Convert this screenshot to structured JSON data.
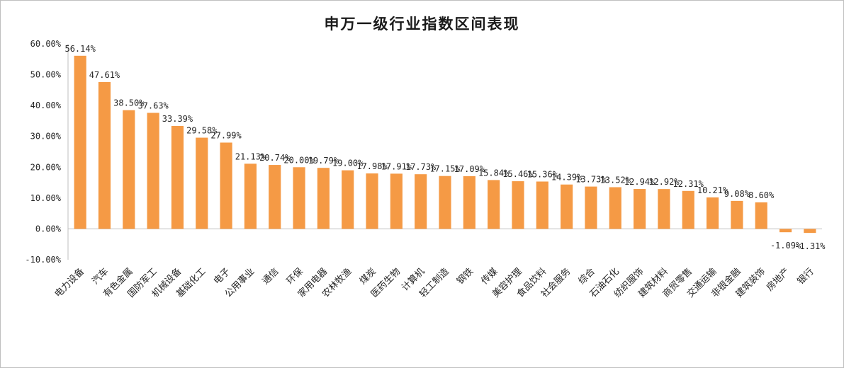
{
  "chart_data": {
    "type": "bar",
    "title": "申万一级行业指数区间表现",
    "xlabel": "",
    "ylabel": "",
    "ylim": [
      -0.1,
      0.6
    ],
    "y_tick_labels": [
      "60.00%",
      "50.00%",
      "40.00%",
      "30.00%",
      "20.00%",
      "10.00%",
      "0.00%",
      "-10.00%"
    ],
    "grid": false,
    "legend": "none",
    "bar_color": "#F59A45",
    "categories": [
      "电力设备",
      "汽车",
      "有色金属",
      "国防军工",
      "机械设备",
      "基础化工",
      "电子",
      "公用事业",
      "通信",
      "环保",
      "家用电器",
      "农林牧渔",
      "煤炭",
      "医药生物",
      "计算机",
      "轻工制造",
      "钢铁",
      "传媒",
      "美容护理",
      "食品饮料",
      "社会服务",
      "综合",
      "石油石化",
      "纺织服饰",
      "建筑材料",
      "商贸零售",
      "交通运输",
      "非银金融",
      "建筑装饰",
      "房地产",
      "银行"
    ],
    "values": [
      0.5614,
      0.4761,
      0.385,
      0.3763,
      0.3339,
      0.2958,
      0.2799,
      0.2113,
      0.2074,
      0.2,
      0.1979,
      0.19,
      0.1798,
      0.1791,
      0.1773,
      0.1715,
      0.1709,
      0.1584,
      0.1546,
      0.1536,
      0.1439,
      0.1373,
      0.1352,
      0.1294,
      0.1292,
      0.1231,
      0.1021,
      0.0908,
      0.086,
      -0.0109,
      -0.0131
    ],
    "data_labels": [
      "56.14%",
      "47.61%",
      "38.50%",
      "37.63%",
      "33.39%",
      "29.58%",
      "27.99%",
      "21.13%",
      "20.74%",
      "20.00%",
      "19.79%",
      "19.00%",
      "17.98%",
      "17.91%",
      "17.73%",
      "17.15%",
      "17.09%",
      "15.84%",
      "15.46%",
      "15.36%",
      "14.39%",
      "13.73%",
      "13.52%",
      "12.94%",
      "12.92%",
      "12.31%",
      "10.21%",
      "9.08%",
      "8.60%",
      "-1.09%",
      "-1.31%"
    ]
  }
}
